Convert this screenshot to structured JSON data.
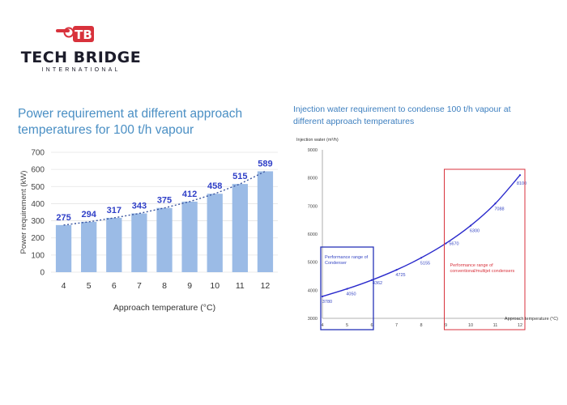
{
  "brand": {
    "emblem": "TB",
    "name": "TECH BRIDGE",
    "subtitle": "INTERNATIONAL",
    "colors": {
      "red": "#d8323c",
      "dark": "#1c1c2a"
    }
  },
  "chart_data": [
    {
      "type": "bar",
      "title": "Power requirement at different approach temperatures for 100 t/h vapour",
      "xlabel": "Approach temperature (°C)",
      "ylabel": "Power requirement (kW)",
      "categories": [
        "4",
        "5",
        "6",
        "7",
        "8",
        "9",
        "10",
        "11",
        "12"
      ],
      "values": [
        275,
        294,
        317,
        343,
        375,
        412,
        458,
        515,
        589
      ],
      "ylim": [
        0,
        700
      ],
      "yticks": [
        0,
        100,
        200,
        300,
        400,
        500,
        600,
        700
      ],
      "trendline": "dotted",
      "colors": {
        "bar": "#9bbbe6",
        "label": "#2f3fc7",
        "trend": "#3a55a0"
      }
    },
    {
      "type": "line",
      "title": "Injection water requirement to condense 100 t/h vapour at different approach temperatures",
      "ylabel": "Injection water (m³/h)",
      "xlabel": "Approach temperature (°C)",
      "x": [
        4,
        5,
        6,
        7,
        8,
        9,
        10,
        11,
        12
      ],
      "xticks": [
        4,
        5,
        6,
        7,
        8,
        9,
        10,
        11,
        12
      ],
      "y": [
        3780,
        4050,
        4362,
        4725,
        5155,
        5670,
        6300,
        7088,
        8100
      ],
      "xlim": [
        4,
        12
      ],
      "ylim": [
        3000,
        9000
      ],
      "yticks": [
        3000,
        4000,
        5000,
        6000,
        7000,
        8000,
        9000
      ],
      "annotations": [
        {
          "text": "Performance range of",
          "text2": "Condenser",
          "x_range": [
            4,
            6
          ]
        },
        {
          "text": "Performance range of",
          "text2": "conventional/multijet condensers",
          "x_range": [
            9,
            12
          ]
        }
      ],
      "colors": {
        "line": "#2a2acc",
        "box1": "#2633b8",
        "box2": "#d8323c",
        "text1": "#3848c4",
        "text2": "#d8323c"
      }
    }
  ]
}
